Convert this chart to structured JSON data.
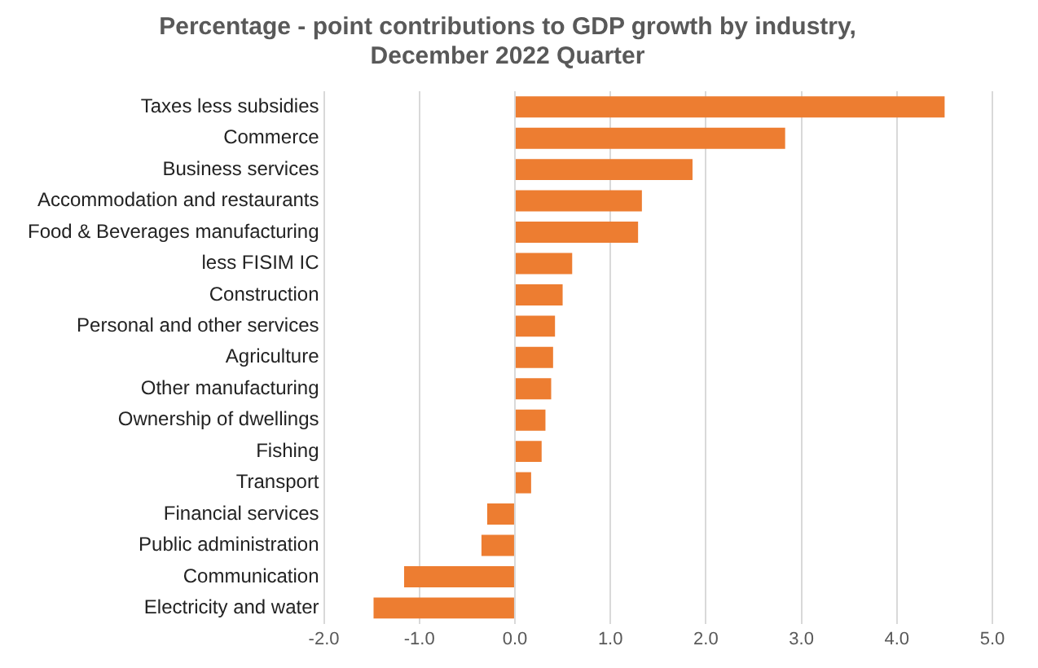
{
  "chart_data": {
    "type": "bar",
    "orientation": "horizontal",
    "title": [
      "Percentage - point contributions to GDP growth by industry,",
      "December 2022 Quarter"
    ],
    "categories": [
      "Taxes less subsidies",
      "Commerce",
      "Business services",
      "Accommodation and restaurants",
      "Food & Beverages manufacturing",
      "less FISIM IC",
      "Construction",
      "Personal and other services",
      "Agriculture",
      "Other manufacturing",
      "Ownership of dwellings",
      "Fishing",
      "Transport",
      "Financial services",
      "Public administration",
      "Communication",
      "Electricity and water"
    ],
    "values": [
      4.5,
      2.83,
      1.86,
      1.33,
      1.29,
      0.6,
      0.5,
      0.42,
      0.4,
      0.38,
      0.32,
      0.28,
      0.17,
      -0.29,
      -0.35,
      -1.16,
      -1.48
    ],
    "color": "#ed7d31",
    "xlim": [
      -2,
      5
    ],
    "xticks": [
      {
        "value": -2,
        "label": "-2.0"
      },
      {
        "value": -1,
        "label": "-1.0"
      },
      {
        "value": 0,
        "label": "0.0"
      },
      {
        "value": 1,
        "label": "1.0"
      },
      {
        "value": 2,
        "label": "2.0"
      },
      {
        "value": 3,
        "label": "3.0"
      },
      {
        "value": 4,
        "label": "4.0"
      },
      {
        "value": 5,
        "label": "5.0"
      }
    ],
    "grid": "x"
  }
}
